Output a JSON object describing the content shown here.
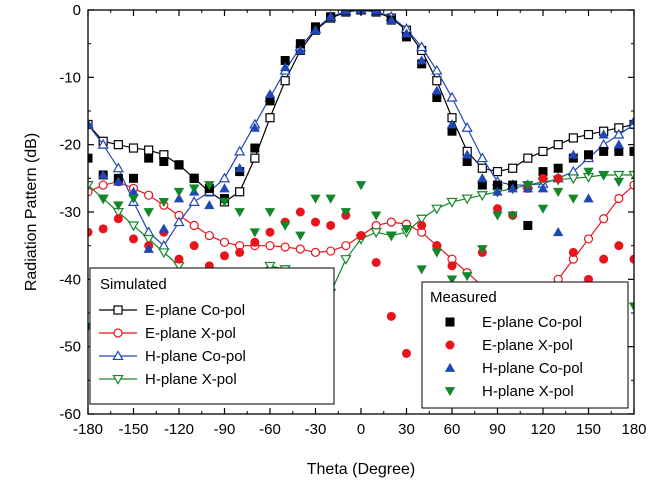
{
  "chart_data": {
    "type": "line",
    "xlabel": "Theta (Degree)",
    "ylabel": "Radiation Pattern (dB)",
    "xlim": [
      -180,
      180
    ],
    "ylim": [
      -60,
      0
    ],
    "xticks": [
      -180,
      -150,
      -120,
      -90,
      -60,
      -30,
      0,
      30,
      60,
      90,
      120,
      150,
      180
    ],
    "yticks": [
      0,
      -10,
      -20,
      -30,
      -40,
      -50,
      -60
    ],
    "grid": false,
    "legends": [
      {
        "title": "Simulated",
        "placement": "lower-left",
        "entries": [
          "E-plane Co-pol",
          "E-plane X-pol",
          "H-plane Co-pol",
          "H-plane X-pol"
        ]
      },
      {
        "title": "Measured",
        "placement": "lower-right",
        "entries": [
          "E-plane Co-pol",
          "E-plane X-pol",
          "H-plane Co-pol",
          "H-plane X-pol"
        ]
      }
    ],
    "simulated": [
      {
        "name": "E-plane Co-pol",
        "color": "#000000",
        "marker": "square-open",
        "x": [
          -180,
          -170,
          -160,
          -150,
          -140,
          -130,
          -120,
          -110,
          -100,
          -90,
          -80,
          -70,
          -60,
          -50,
          -40,
          -30,
          -20,
          -10,
          0,
          10,
          20,
          30,
          40,
          50,
          60,
          70,
          80,
          90,
          100,
          110,
          120,
          130,
          140,
          150,
          160,
          170,
          180
        ],
        "y": [
          -17,
          -19.5,
          -20,
          -20.5,
          -20.8,
          -21.5,
          -23,
          -25,
          -27,
          -28.5,
          -27,
          -22,
          -16,
          -10.5,
          -6,
          -3,
          -1.2,
          -0.3,
          0,
          -0.3,
          -1.2,
          -3,
          -6,
          -10.5,
          -16,
          -21,
          -23.5,
          -24,
          -23.5,
          -22,
          -21,
          -20,
          -19,
          -18.5,
          -18,
          -17.5,
          -17
        ]
      },
      {
        "name": "E-plane X-pol",
        "color": "#e8141c",
        "marker": "circle-open",
        "x": [
          -180,
          -170,
          -160,
          -150,
          -140,
          -130,
          -120,
          -110,
          -100,
          -90,
          -80,
          -70,
          -60,
          -50,
          -40,
          -30,
          -20,
          -10,
          0,
          10,
          20,
          30,
          40,
          50,
          60,
          70,
          80,
          90,
          100,
          110,
          120,
          130,
          140,
          150,
          160,
          170,
          180
        ],
        "y": [
          -27,
          -26,
          -25.5,
          -26.5,
          -27.5,
          -29,
          -30.5,
          -32,
          -33.5,
          -34.5,
          -35,
          -35,
          -35,
          -35.2,
          -35.5,
          -36,
          -35.8,
          -35,
          -33.5,
          -32,
          -31.5,
          -31.8,
          -33,
          -35,
          -37,
          -39,
          -41,
          -43,
          -44,
          -44,
          -43,
          -40,
          -37,
          -34,
          -31,
          -28,
          -26
        ]
      },
      {
        "name": "H-plane Co-pol",
        "color": "#2147b5",
        "marker": "triangle-up-open",
        "x": [
          -180,
          -170,
          -160,
          -150,
          -140,
          -130,
          -120,
          -110,
          -100,
          -90,
          -80,
          -70,
          -60,
          -50,
          -40,
          -30,
          -20,
          -10,
          0,
          10,
          20,
          30,
          40,
          50,
          60,
          70,
          80,
          90,
          100,
          110,
          120,
          130,
          140,
          150,
          160,
          170,
          180
        ],
        "y": [
          -17,
          -20,
          -23.5,
          -28.5,
          -33,
          -35,
          -31.5,
          -28.5,
          -27,
          -25,
          -21,
          -17,
          -13,
          -9,
          -5.5,
          -2.8,
          -1,
          -0.2,
          0,
          -0.2,
          -1,
          -2.8,
          -5.5,
          -9,
          -13,
          -17.5,
          -22,
          -25.5,
          -26,
          -26,
          -25.8,
          -25,
          -24,
          -22,
          -20,
          -18.5,
          -17
        ]
      },
      {
        "name": "H-plane X-pol",
        "color": "#13862a",
        "marker": "triangle-down-open",
        "x": [
          -180,
          -170,
          -160,
          -150,
          -140,
          -130,
          -120,
          -110,
          -100,
          -90,
          -80,
          -70,
          -60,
          -50,
          -40,
          -30,
          -20,
          -10,
          0,
          10,
          20,
          30,
          40,
          50,
          60,
          70,
          80,
          90,
          100,
          110,
          120,
          130,
          140,
          150,
          160,
          170,
          180
        ],
        "y": [
          -26,
          -28,
          -30,
          -32,
          -34,
          -36,
          -38,
          -40,
          -41,
          -41.5,
          -41,
          -39,
          -38,
          -38.5,
          -42,
          -44,
          -42,
          -37,
          -34,
          -33,
          -33.5,
          -33,
          -31,
          -29.5,
          -28.5,
          -28,
          -27.5,
          -27,
          -26.5,
          -26,
          -25.5,
          -25.2,
          -25,
          -24.8,
          -24.5,
          -24.5,
          -24.5
        ]
      }
    ],
    "measured": [
      {
        "name": "E-plane Co-pol",
        "color": "#000000",
        "marker": "square-filled",
        "x": [
          -180,
          -170,
          -160,
          -150,
          -140,
          -130,
          -120,
          -110,
          -100,
          -90,
          -80,
          -70,
          -60,
          -50,
          -40,
          -30,
          -20,
          -10,
          0,
          10,
          20,
          30,
          40,
          50,
          60,
          70,
          80,
          90,
          100,
          110,
          120,
          130,
          140,
          150,
          160,
          170,
          180
        ],
        "y": [
          -22,
          -24.5,
          -25,
          -25,
          -22,
          -22.5,
          -23,
          -25,
          -26.5,
          -28,
          -24,
          -20.5,
          -13.5,
          -7.5,
          -5,
          -2.5,
          -1,
          0,
          0,
          0,
          -1.5,
          -4,
          -8,
          -13,
          -18,
          -22.5,
          -26,
          -26,
          -26,
          -32,
          -24,
          -23.5,
          -22,
          -21.5,
          -21,
          -21,
          -21
        ]
      },
      {
        "name": "E-plane X-pol",
        "color": "#e8141c",
        "marker": "circle-filled",
        "x": [
          -180,
          -170,
          -160,
          -150,
          -140,
          -130,
          -120,
          -110,
          -100,
          -90,
          -80,
          -70,
          -60,
          -50,
          -40,
          -30,
          -20,
          -10,
          0,
          10,
          20,
          30,
          40,
          50,
          60,
          70,
          80,
          90,
          100,
          110,
          120,
          130,
          140,
          150,
          160,
          170,
          180
        ],
        "y": [
          -33,
          -32.5,
          -31,
          -34,
          -35,
          -33,
          -37,
          -35,
          -38,
          -36.5,
          -36,
          -34.5,
          -33,
          -31.5,
          -30,
          -31.5,
          -32,
          -30.5,
          -33.5,
          -37.5,
          -45.5,
          -51,
          -32,
          -35,
          -38,
          -41.5,
          -36,
          -29.5,
          -30.5,
          -26.5,
          -25,
          -25,
          -36,
          -40,
          -37,
          -35,
          -37
        ]
      },
      {
        "name": "H-plane Co-pol",
        "color": "#2147b5",
        "marker": "triangle-up-filled",
        "x": [
          -180,
          -170,
          -160,
          -150,
          -140,
          -130,
          -120,
          -110,
          -100,
          -90,
          -80,
          -70,
          -60,
          -50,
          -40,
          -30,
          -20,
          -10,
          0,
          10,
          20,
          30,
          40,
          50,
          60,
          70,
          80,
          90,
          100,
          110,
          120,
          130,
          140,
          150,
          160,
          170,
          180
        ],
        "y": [
          -17,
          -24.5,
          -25.5,
          -27,
          -35.5,
          -32.5,
          -28,
          -27,
          -29,
          -26.5,
          -23.5,
          -17.5,
          -12.5,
          -8.5,
          -6,
          -3,
          -1,
          0,
          0,
          0,
          -1.5,
          -3.5,
          -7.5,
          -12,
          -17,
          -21.5,
          -25,
          -27,
          -26.5,
          -26.5,
          -26.5,
          -33,
          -21.5,
          -28,
          -18.5,
          -20,
          -16.5
        ]
      },
      {
        "name": "H-plane X-pol",
        "color": "#13862a",
        "marker": "triangle-down-filled",
        "x": [
          -180,
          -170,
          -160,
          -150,
          -140,
          -130,
          -120,
          -110,
          -100,
          -90,
          -80,
          -70,
          -60,
          -50,
          -40,
          -30,
          -20,
          -10,
          0,
          10,
          20,
          30,
          40,
          50,
          60,
          70,
          80,
          90,
          100,
          110,
          120,
          130,
          140,
          150,
          160,
          170,
          180
        ],
        "y": [
          -47,
          -28,
          -29,
          -28,
          -30,
          -28.5,
          -27,
          -26.5,
          -26,
          -28.5,
          -30,
          -33,
          -30,
          -32,
          -33.5,
          -28,
          -28,
          -30,
          -26,
          -30.5,
          -33.5,
          -32.5,
          -38.5,
          -36,
          -40,
          -39.5,
          -35.5,
          -30.5,
          -30.5,
          -26,
          -29.5,
          -27,
          -28,
          -24,
          -24.5,
          -25.5,
          -44
        ]
      }
    ]
  }
}
